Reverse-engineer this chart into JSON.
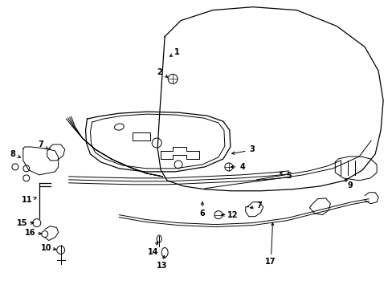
{
  "bg_color": "#ffffff",
  "line_color": "#000000",
  "figsize": [
    4.89,
    3.6
  ],
  "dpi": 100,
  "hood_outer_x": [
    205,
    230,
    270,
    320,
    380,
    435,
    468,
    478,
    475,
    465,
    440,
    400,
    360,
    320,
    285,
    255,
    230,
    210,
    200,
    195,
    197,
    205
  ],
  "hood_outer_y": [
    42,
    22,
    10,
    5,
    8,
    25,
    50,
    85,
    125,
    165,
    195,
    215,
    228,
    235,
    238,
    238,
    236,
    232,
    225,
    210,
    180,
    42
  ],
  "hood_inner_x": [
    255,
    290,
    340,
    390,
    430,
    458,
    468,
    465,
    450,
    425,
    395,
    360,
    325,
    295,
    270,
    255
  ],
  "hood_inner_y": [
    235,
    232,
    228,
    222,
    210,
    185,
    160,
    135,
    115,
    100,
    95,
    100,
    115,
    135,
    170,
    235
  ],
  "hood_crease_x": [
    300,
    340,
    375,
    400,
    415
  ],
  "hood_crease_y": [
    228,
    222,
    215,
    208,
    200
  ],
  "latch_plate_x": [
    110,
    108,
    108,
    115,
    135,
    170,
    210,
    250,
    275,
    285,
    285,
    275,
    255,
    220,
    180,
    145,
    115,
    110
  ],
  "latch_plate_y": [
    148,
    160,
    178,
    192,
    202,
    210,
    213,
    210,
    203,
    192,
    168,
    155,
    148,
    143,
    140,
    141,
    145,
    148
  ],
  "seal_left_x": [
    85,
    92,
    100,
    112,
    128,
    148,
    168,
    188
  ],
  "seal_left_y": [
    148,
    158,
    172,
    186,
    198,
    210,
    218,
    222
  ],
  "seal_strip_x": [
    85,
    110,
    150,
    200,
    250,
    310,
    350
  ],
  "seal_strip_y": [
    222,
    222,
    221,
    220,
    218,
    215,
    213
  ],
  "cable_x": [
    148,
    185,
    225,
    270,
    315,
    360,
    400,
    440,
    462
  ],
  "cable_y": [
    268,
    272,
    275,
    278,
    275,
    268,
    260,
    252,
    248
  ],
  "cable_loop_x": [
    390,
    398,
    407,
    412,
    410,
    402,
    392,
    387,
    390
  ],
  "cable_loop_y": [
    258,
    250,
    248,
    254,
    262,
    268,
    266,
    260,
    258
  ],
  "label_positions": {
    "1": [
      218,
      68,
      225,
      73
    ],
    "2": [
      195,
      92,
      207,
      98
    ],
    "3": [
      312,
      188,
      302,
      193
    ],
    "4": [
      302,
      208,
      292,
      212
    ],
    "5": [
      345,
      215,
      358,
      218
    ],
    "6": [
      253,
      268,
      253,
      260
    ],
    "7a": [
      55,
      182,
      63,
      188
    ],
    "7b": [
      318,
      258,
      310,
      263
    ],
    "8": [
      18,
      194,
      28,
      198
    ],
    "9": [
      436,
      228,
      430,
      222
    ],
    "10": [
      62,
      312,
      72,
      315
    ],
    "11": [
      38,
      248,
      48,
      245
    ],
    "12": [
      295,
      270,
      283,
      270
    ],
    "13": [
      200,
      332,
      200,
      320
    ],
    "14": [
      185,
      310,
      190,
      302
    ],
    "15": [
      28,
      278,
      40,
      278
    ],
    "16": [
      38,
      292,
      50,
      292
    ],
    "17": [
      338,
      325,
      340,
      318
    ]
  }
}
